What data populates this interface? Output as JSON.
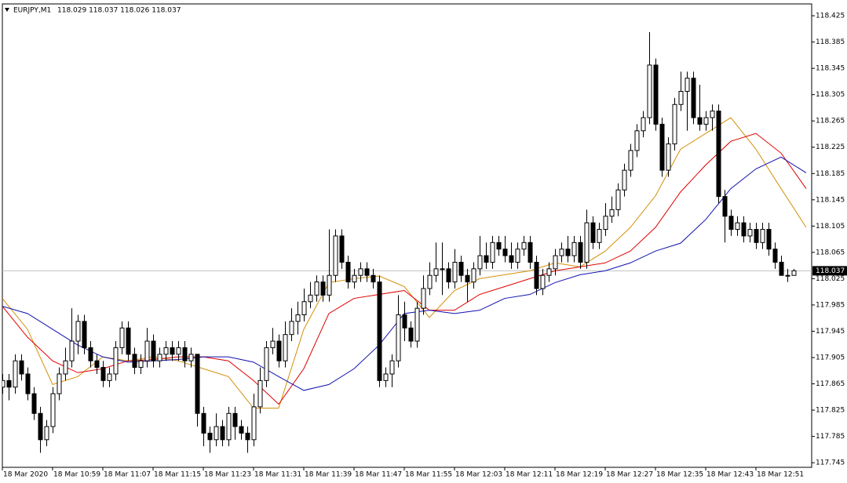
{
  "chart_data": {
    "type": "candlestick",
    "title": "EURJPY,M1",
    "info": "118.029 118.037 118.026 118.037",
    "ohlc": [
      [
        117.86,
        117.88,
        117.85,
        117.87
      ],
      [
        117.87,
        117.88,
        117.84,
        117.86
      ],
      [
        117.86,
        117.91,
        117.85,
        117.9
      ],
      [
        117.9,
        117.91,
        117.87,
        117.88
      ],
      [
        117.88,
        117.89,
        117.84,
        117.85
      ],
      [
        117.85,
        117.86,
        117.81,
        117.82
      ],
      [
        117.82,
        117.83,
        117.76,
        117.78
      ],
      [
        117.78,
        117.81,
        117.77,
        117.8
      ],
      [
        117.8,
        117.86,
        117.79,
        117.85
      ],
      [
        117.85,
        117.89,
        117.84,
        117.88
      ],
      [
        117.88,
        117.92,
        117.87,
        117.9
      ],
      [
        117.9,
        117.98,
        117.89,
        117.93
      ],
      [
        117.93,
        117.97,
        117.91,
        117.96
      ],
      [
        117.96,
        117.97,
        117.91,
        117.92
      ],
      [
        117.92,
        117.93,
        117.89,
        117.9
      ],
      [
        117.9,
        117.91,
        117.88,
        117.89
      ],
      [
        117.89,
        117.9,
        117.86,
        117.87
      ],
      [
        117.87,
        117.89,
        117.86,
        117.88
      ],
      [
        117.88,
        117.93,
        117.87,
        117.92
      ],
      [
        117.92,
        117.96,
        117.91,
        117.95
      ],
      [
        117.95,
        117.96,
        117.9,
        117.91
      ],
      [
        117.91,
        117.92,
        117.88,
        117.89
      ],
      [
        117.89,
        117.91,
        117.88,
        117.9
      ],
      [
        117.9,
        117.95,
        117.89,
        117.93
      ],
      [
        117.93,
        117.94,
        117.89,
        117.9
      ],
      [
        117.9,
        117.92,
        117.89,
        117.91
      ],
      [
        117.91,
        117.93,
        117.9,
        117.92
      ],
      [
        117.92,
        117.93,
        117.9,
        117.91
      ],
      [
        117.91,
        117.93,
        117.9,
        117.92
      ],
      [
        117.92,
        117.93,
        117.89,
        117.9
      ],
      [
        117.9,
        117.92,
        117.89,
        117.91
      ],
      [
        117.91,
        117.91,
        117.8,
        117.82
      ],
      [
        117.82,
        117.83,
        117.77,
        117.79
      ],
      [
        117.79,
        117.8,
        117.76,
        117.78
      ],
      [
        117.78,
        117.82,
        117.77,
        117.8
      ],
      [
        117.8,
        117.81,
        117.77,
        117.78
      ],
      [
        117.78,
        117.83,
        117.77,
        117.82
      ],
      [
        117.82,
        117.83,
        117.78,
        117.8
      ],
      [
        117.8,
        117.81,
        117.78,
        117.79
      ],
      [
        117.79,
        117.8,
        117.76,
        117.78
      ],
      [
        117.78,
        117.85,
        117.77,
        117.83
      ],
      [
        117.83,
        117.89,
        117.82,
        117.87
      ],
      [
        117.87,
        117.93,
        117.86,
        117.92
      ],
      [
        117.92,
        117.95,
        117.91,
        117.93
      ],
      [
        117.93,
        117.94,
        117.89,
        117.9
      ],
      [
        117.9,
        117.96,
        117.89,
        117.94
      ],
      [
        117.94,
        117.98,
        117.93,
        117.96
      ],
      [
        117.96,
        117.99,
        117.94,
        117.97
      ],
      [
        117.97,
        118.01,
        117.96,
        117.99
      ],
      [
        117.99,
        118.02,
        117.98,
        118.0
      ],
      [
        118.0,
        118.03,
        117.99,
        118.02
      ],
      [
        118.02,
        118.03,
        117.99,
        118.0
      ],
      [
        118.0,
        118.1,
        117.99,
        118.03
      ],
      [
        118.03,
        118.1,
        118.02,
        118.09
      ],
      [
        118.09,
        118.1,
        118.04,
        118.05
      ],
      [
        118.05,
        118.06,
        118.01,
        118.02
      ],
      [
        118.02,
        118.04,
        118.01,
        118.03
      ],
      [
        118.03,
        118.05,
        118.02,
        118.04
      ],
      [
        118.04,
        118.05,
        118.02,
        118.03
      ],
      [
        118.03,
        118.04,
        118.01,
        118.02
      ],
      [
        118.02,
        118.03,
        117.86,
        117.87
      ],
      [
        117.87,
        117.89,
        117.86,
        117.88
      ],
      [
        117.88,
        117.91,
        117.86,
        117.9
      ],
      [
        117.9,
        118.0,
        117.89,
        117.97
      ],
      [
        117.97,
        117.99,
        117.93,
        117.95
      ],
      [
        117.95,
        117.96,
        117.92,
        117.93
      ],
      [
        117.93,
        117.99,
        117.92,
        117.98
      ],
      [
        117.98,
        118.03,
        117.97,
        118.01
      ],
      [
        118.01,
        118.05,
        118.0,
        118.03
      ],
      [
        118.03,
        118.08,
        118.02,
        118.04
      ],
      [
        118.04,
        118.08,
        118.0,
        118.04
      ],
      [
        118.04,
        118.05,
        118.01,
        118.02
      ],
      [
        118.02,
        118.07,
        118.01,
        118.05
      ],
      [
        118.05,
        118.06,
        118.02,
        118.03
      ],
      [
        118.03,
        118.04,
        117.99,
        118.02
      ],
      [
        118.02,
        118.05,
        118.01,
        118.04
      ],
      [
        118.04,
        118.09,
        118.03,
        118.06
      ],
      [
        118.06,
        118.08,
        118.04,
        118.05
      ],
      [
        118.05,
        118.09,
        118.04,
        118.08
      ],
      [
        118.08,
        118.09,
        118.06,
        118.07
      ],
      [
        118.07,
        118.09,
        118.05,
        118.06
      ],
      [
        118.06,
        118.08,
        118.04,
        118.05
      ],
      [
        118.05,
        118.08,
        118.04,
        118.07
      ],
      [
        118.07,
        118.09,
        118.06,
        118.08
      ],
      [
        118.08,
        118.09,
        118.04,
        118.05
      ],
      [
        118.05,
        118.06,
        118.0,
        118.01
      ],
      [
        118.01,
        118.04,
        118.0,
        118.03
      ],
      [
        118.03,
        118.05,
        118.02,
        118.04
      ],
      [
        118.04,
        118.07,
        118.03,
        118.06
      ],
      [
        118.06,
        118.08,
        118.05,
        118.07
      ],
      [
        118.07,
        118.09,
        118.05,
        118.06
      ],
      [
        118.06,
        118.09,
        118.05,
        118.08
      ],
      [
        118.08,
        118.09,
        118.04,
        118.05
      ],
      [
        118.05,
        118.13,
        118.04,
        118.11
      ],
      [
        118.11,
        118.12,
        118.07,
        118.08
      ],
      [
        118.08,
        118.11,
        118.07,
        118.1
      ],
      [
        118.1,
        118.14,
        118.09,
        118.12
      ],
      [
        118.12,
        118.15,
        118.11,
        118.13
      ],
      [
        118.13,
        118.17,
        118.12,
        118.16
      ],
      [
        118.16,
        118.2,
        118.15,
        118.19
      ],
      [
        118.19,
        118.23,
        118.18,
        118.22
      ],
      [
        118.22,
        118.26,
        118.21,
        118.25
      ],
      [
        118.25,
        118.28,
        118.24,
        118.27
      ],
      [
        118.27,
        118.4,
        118.26,
        118.35
      ],
      [
        118.35,
        118.36,
        118.25,
        118.26
      ],
      [
        118.26,
        118.27,
        118.18,
        118.19
      ],
      [
        118.19,
        118.24,
        118.18,
        118.23
      ],
      [
        118.23,
        118.3,
        118.22,
        118.29
      ],
      [
        118.29,
        118.34,
        118.28,
        118.31
      ],
      [
        118.31,
        118.34,
        118.25,
        118.33
      ],
      [
        118.33,
        118.34,
        118.26,
        118.27
      ],
      [
        118.27,
        118.32,
        118.25,
        118.26
      ],
      [
        118.26,
        118.28,
        118.25,
        118.27
      ],
      [
        118.27,
        118.29,
        118.25,
        118.28
      ],
      [
        118.28,
        118.29,
        118.14,
        118.15
      ],
      [
        118.15,
        118.16,
        118.08,
        118.12
      ],
      [
        118.12,
        118.13,
        118.09,
        118.1
      ],
      [
        118.1,
        118.12,
        118.09,
        118.11
      ],
      [
        118.11,
        118.12,
        118.08,
        118.09
      ],
      [
        118.09,
        118.11,
        118.08,
        118.1
      ],
      [
        118.1,
        118.11,
        118.07,
        118.08
      ],
      [
        118.08,
        118.11,
        118.07,
        118.1
      ],
      [
        118.1,
        118.11,
        118.06,
        118.07
      ],
      [
        118.07,
        118.08,
        118.04,
        118.05
      ],
      [
        118.05,
        118.06,
        118.03,
        118.03
      ],
      [
        118.03,
        118.04,
        118.02,
        118.03
      ],
      [
        118.03,
        118.04,
        118.03,
        118.037
      ]
    ],
    "series": [
      {
        "color": "#d4900a",
        "x": [
          0,
          4,
          8,
          12,
          16,
          20,
          24,
          28,
          32,
          36,
          40,
          44,
          48,
          52,
          56,
          60,
          64,
          68,
          72,
          76,
          80,
          84,
          88,
          92,
          96,
          100,
          104,
          108,
          112,
          116,
          120,
          124,
          128
        ],
        "values": [
          117.995,
          117.948,
          117.864,
          117.876,
          117.906,
          117.9,
          117.906,
          117.9,
          117.888,
          117.876,
          117.828,
          117.828,
          117.948,
          118.019,
          118.025,
          118.029,
          118.013,
          117.966,
          118.007,
          118.025,
          118.031,
          118.037,
          118.049,
          118.043,
          118.067,
          118.103,
          118.151,
          118.222,
          118.246,
          118.27,
          118.222,
          118.162,
          118.103
        ]
      },
      {
        "color": "#e00000",
        "x": [
          0,
          4,
          8,
          12,
          16,
          20,
          24,
          28,
          32,
          36,
          40,
          44,
          48,
          52,
          56,
          60,
          64,
          68,
          72,
          76,
          80,
          84,
          88,
          92,
          96,
          100,
          104,
          108,
          112,
          116,
          120,
          124,
          128
        ],
        "values": [
          117.983,
          117.936,
          117.9,
          117.882,
          117.888,
          117.9,
          117.902,
          117.906,
          117.906,
          117.9,
          117.87,
          117.834,
          117.888,
          117.972,
          117.995,
          118.001,
          118.007,
          117.977,
          117.977,
          118.001,
          118.013,
          118.025,
          118.037,
          118.043,
          118.049,
          118.067,
          118.103,
          118.157,
          118.198,
          118.234,
          118.246,
          118.216,
          118.162
        ]
      },
      {
        "color": "#1010b0",
        "x": [
          0,
          4,
          8,
          12,
          16,
          20,
          24,
          28,
          32,
          36,
          40,
          44,
          48,
          52,
          56,
          60,
          64,
          68,
          72,
          76,
          80,
          84,
          88,
          92,
          96,
          100,
          104,
          108,
          112,
          116,
          120,
          124,
          128
        ],
        "values": [
          117.983,
          117.972,
          117.948,
          117.924,
          117.906,
          117.898,
          117.9,
          117.902,
          117.906,
          117.906,
          117.898,
          117.876,
          117.855,
          117.864,
          117.888,
          117.924,
          117.972,
          117.977,
          117.972,
          117.977,
          117.995,
          118.001,
          118.019,
          118.031,
          118.037,
          118.049,
          118.067,
          118.079,
          118.115,
          118.162,
          118.192,
          118.21,
          118.186
        ]
      }
    ],
    "last_price": 118.037,
    "xlim": [
      0,
      128.875
    ],
    "xticks": [
      {
        "value": 0,
        "label": "18 Mar 2020"
      },
      {
        "value": 8,
        "label": "18 Mar 10:59"
      },
      {
        "value": 16,
        "label": "18 Mar 11:07"
      },
      {
        "value": 24,
        "label": "18 Mar 11:15"
      },
      {
        "value": 32,
        "label": "18 Mar 11:23"
      },
      {
        "value": 40,
        "label": "18 Mar 11:31"
      },
      {
        "value": 48,
        "label": "18 Mar 11:39"
      },
      {
        "value": 56,
        "label": "18 Mar 11:47"
      },
      {
        "value": 64,
        "label": "18 Mar 11:55"
      },
      {
        "value": 72,
        "label": "18 Mar 12:03"
      },
      {
        "value": 80,
        "label": "18 Mar 12:11"
      },
      {
        "value": 88,
        "label": "18 Mar 12:19"
      },
      {
        "value": 96,
        "label": "18 Mar 12:27"
      },
      {
        "value": 104,
        "label": "18 Mar 12:35"
      },
      {
        "value": 112,
        "label": "18 Mar 12:43"
      },
      {
        "value": 120,
        "label": "18 Mar 12:51"
      }
    ],
    "ylim": [
      117.738,
      118.443
    ],
    "yticks": [
      117.745,
      117.785,
      117.825,
      117.865,
      117.905,
      117.945,
      117.985,
      118.025,
      118.065,
      118.105,
      118.145,
      118.185,
      118.225,
      118.265,
      118.305,
      118.345,
      118.385,
      118.425
    ]
  }
}
